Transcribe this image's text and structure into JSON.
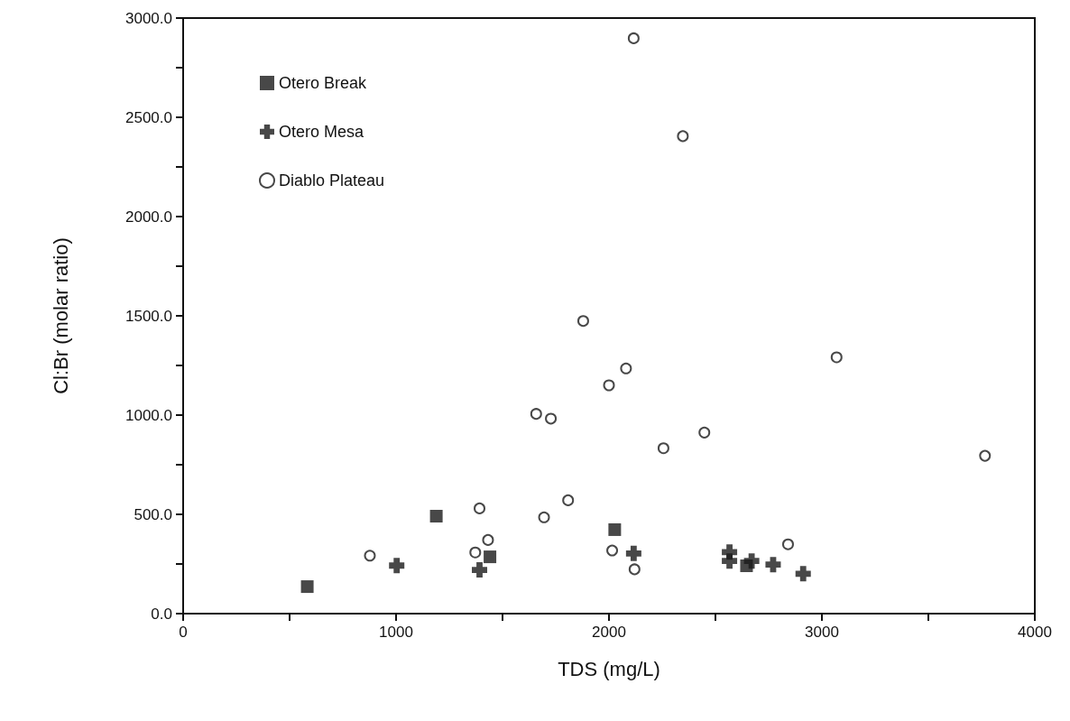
{
  "chart_data": {
    "type": "scatter",
    "xlabel": "TDS (mg/L)",
    "ylabel": "Cl:Br (molar ratio)",
    "xlim": [
      0,
      4000
    ],
    "xticks": [
      0,
      {
        "value": 500,
        "label": null
      },
      1000,
      {
        "value": 1500,
        "label": null
      },
      2000,
      {
        "value": 2500,
        "label": null
      },
      3000,
      {
        "value": 3500,
        "label": null
      },
      4000
    ],
    "ylim": [
      0,
      3000
    ],
    "yticks": [
      {
        "value": 0,
        "label": "0.0"
      },
      {
        "value": 250,
        "label": null
      },
      {
        "value": 500,
        "label": "500.0"
      },
      {
        "value": 750,
        "label": null
      },
      {
        "value": 1000,
        "label": "1000.0"
      },
      {
        "value": 1250,
        "label": null
      },
      {
        "value": 1500,
        "label": "1500.0"
      },
      {
        "value": 1750,
        "label": null
      },
      {
        "value": 2000,
        "label": "2000.0"
      },
      {
        "value": 2250,
        "label": null
      },
      {
        "value": 2500,
        "label": "2500.0"
      },
      {
        "value": 2750,
        "label": null
      },
      {
        "value": 3000,
        "label": "3000.0"
      }
    ],
    "grid": false,
    "legend": "top left",
    "series": [
      {
        "name": "Otero Break",
        "color": "#1a1a1a",
        "marker": "square",
        "x": [
          583,
          1189,
          1441,
          2027,
          2646
        ],
        "values": [
          136,
          491,
          286,
          423,
          241
        ]
      },
      {
        "name": "Otero Mesa",
        "color": "#1a1a1a",
        "marker": "cross",
        "x": [
          1003,
          1392,
          2116,
          2566,
          2566,
          2670,
          2771,
          2912
        ],
        "values": [
          242,
          220,
          303,
          310,
          265,
          265,
          247,
          201
        ]
      },
      {
        "name": "Diablo Plateau",
        "color": "#1a1a1a",
        "marker": "circle",
        "x": [
          2116,
          2347,
          1879,
          2080,
          2000,
          1658,
          1727,
          2256,
          2448,
          3069,
          3766,
          877,
          1392,
          1432,
          1372,
          1695,
          1808,
          2015,
          2120,
          2841
        ],
        "values": [
          2898,
          2405,
          1474,
          1235,
          1150,
          1006,
          982,
          833,
          912,
          1291,
          795,
          292,
          530,
          371,
          308,
          485,
          571,
          318,
          223,
          349
        ]
      }
    ]
  }
}
